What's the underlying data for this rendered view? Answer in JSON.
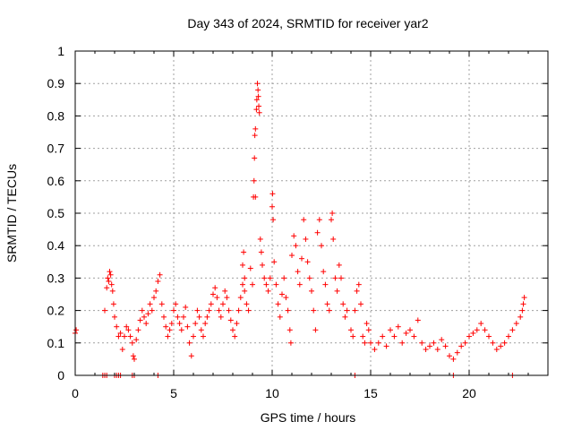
{
  "chart_data": {
    "type": "scatter",
    "title": "Day 343 of 2024, SRMTID for receiver yar2",
    "xlabel": "GPS time / hours",
    "ylabel": "SRMTID / TECUs",
    "xlim": [
      0,
      24
    ],
    "ylim": [
      0,
      1
    ],
    "x_ticks": [
      0,
      5,
      10,
      15,
      20
    ],
    "x_tick_labels": [
      "0",
      "5",
      "10",
      "15",
      "20"
    ],
    "y_ticks": [
      0,
      0.1,
      0.2,
      0.3,
      0.4,
      0.5,
      0.6,
      0.7,
      0.8,
      0.9,
      1
    ],
    "y_tick_labels": [
      "0",
      "0.1",
      "0.2",
      "0.3",
      "0.4",
      "0.5",
      "0.6",
      "0.7",
      "0.8",
      "0.9",
      "1"
    ],
    "grid": true,
    "marker": "+",
    "series": [
      {
        "name": "yar2",
        "color": "#ff0000",
        "points": [
          [
            0.0,
            0.13
          ],
          [
            0.05,
            0.14
          ],
          [
            1.4,
            0.0
          ],
          [
            1.5,
            0.0
          ],
          [
            1.6,
            0.0
          ],
          [
            2.0,
            0.0
          ],
          [
            2.1,
            0.0
          ],
          [
            2.2,
            0.0
          ],
          [
            2.3,
            0.0
          ],
          [
            2.9,
            0.0
          ],
          [
            3.0,
            0.0
          ],
          [
            4.2,
            0.0
          ],
          [
            14.2,
            0.0
          ],
          [
            19.2,
            0.0
          ],
          [
            22.2,
            0.0
          ],
          [
            1.5,
            0.2
          ],
          [
            1.6,
            0.27
          ],
          [
            1.65,
            0.3
          ],
          [
            1.7,
            0.29
          ],
          [
            1.75,
            0.32
          ],
          [
            1.8,
            0.31
          ],
          [
            1.85,
            0.28
          ],
          [
            1.9,
            0.26
          ],
          [
            1.95,
            0.22
          ],
          [
            2.0,
            0.18
          ],
          [
            2.1,
            0.15
          ],
          [
            2.2,
            0.12
          ],
          [
            2.3,
            0.13
          ],
          [
            2.4,
            0.08
          ],
          [
            2.5,
            0.12
          ],
          [
            2.6,
            0.15
          ],
          [
            2.7,
            0.14
          ],
          [
            2.8,
            0.12
          ],
          [
            2.9,
            0.1
          ],
          [
            2.95,
            0.06
          ],
          [
            3.0,
            0.05
          ],
          [
            3.1,
            0.11
          ],
          [
            3.2,
            0.14
          ],
          [
            3.3,
            0.17
          ],
          [
            3.4,
            0.2
          ],
          [
            3.5,
            0.18
          ],
          [
            3.6,
            0.16
          ],
          [
            3.7,
            0.19
          ],
          [
            3.8,
            0.22
          ],
          [
            3.9,
            0.2
          ],
          [
            4.0,
            0.24
          ],
          [
            4.1,
            0.26
          ],
          [
            4.2,
            0.29
          ],
          [
            4.3,
            0.31
          ],
          [
            4.4,
            0.22
          ],
          [
            4.5,
            0.18
          ],
          [
            4.6,
            0.15
          ],
          [
            4.7,
            0.12
          ],
          [
            4.8,
            0.14
          ],
          [
            4.9,
            0.16
          ],
          [
            5.0,
            0.2
          ],
          [
            5.1,
            0.22
          ],
          [
            5.2,
            0.18
          ],
          [
            5.3,
            0.16
          ],
          [
            5.4,
            0.14
          ],
          [
            5.5,
            0.18
          ],
          [
            5.6,
            0.21
          ],
          [
            5.7,
            0.15
          ],
          [
            5.8,
            0.1
          ],
          [
            5.9,
            0.06
          ],
          [
            6.0,
            0.12
          ],
          [
            6.1,
            0.16
          ],
          [
            6.2,
            0.2
          ],
          [
            6.3,
            0.18
          ],
          [
            6.4,
            0.14
          ],
          [
            6.5,
            0.12
          ],
          [
            6.6,
            0.16
          ],
          [
            6.7,
            0.18
          ],
          [
            6.8,
            0.2
          ],
          [
            6.9,
            0.22
          ],
          [
            7.0,
            0.25
          ],
          [
            7.1,
            0.27
          ],
          [
            7.2,
            0.24
          ],
          [
            7.3,
            0.2
          ],
          [
            7.4,
            0.18
          ],
          [
            7.5,
            0.22
          ],
          [
            7.6,
            0.26
          ],
          [
            7.7,
            0.24
          ],
          [
            7.8,
            0.2
          ],
          [
            7.9,
            0.17
          ],
          [
            8.0,
            0.14
          ],
          [
            8.1,
            0.12
          ],
          [
            8.2,
            0.16
          ],
          [
            8.3,
            0.2
          ],
          [
            8.4,
            0.24
          ],
          [
            8.5,
            0.28
          ],
          [
            8.6,
            0.26
          ],
          [
            8.7,
            0.22
          ],
          [
            8.8,
            0.2
          ],
          [
            8.5,
            0.34
          ],
          [
            8.55,
            0.38
          ],
          [
            8.6,
            0.3
          ],
          [
            8.9,
            0.33
          ],
          [
            9.0,
            0.28
          ],
          [
            9.05,
            0.55
          ],
          [
            9.08,
            0.6
          ],
          [
            9.1,
            0.67
          ],
          [
            9.12,
            0.74
          ],
          [
            9.15,
            0.76
          ],
          [
            9.2,
            0.82
          ],
          [
            9.22,
            0.85
          ],
          [
            9.25,
            0.9
          ],
          [
            9.28,
            0.88
          ],
          [
            9.3,
            0.86
          ],
          [
            9.32,
            0.83
          ],
          [
            9.35,
            0.81
          ],
          [
            9.15,
            0.55
          ],
          [
            9.4,
            0.42
          ],
          [
            9.45,
            0.38
          ],
          [
            9.5,
            0.34
          ],
          [
            9.6,
            0.3
          ],
          [
            9.7,
            0.28
          ],
          [
            9.8,
            0.26
          ],
          [
            9.9,
            0.3
          ],
          [
            10.0,
            0.52
          ],
          [
            10.02,
            0.56
          ],
          [
            10.05,
            0.48
          ],
          [
            10.1,
            0.35
          ],
          [
            10.2,
            0.28
          ],
          [
            10.3,
            0.22
          ],
          [
            10.4,
            0.18
          ],
          [
            10.5,
            0.25
          ],
          [
            10.6,
            0.3
          ],
          [
            10.7,
            0.24
          ],
          [
            10.8,
            0.2
          ],
          [
            10.9,
            0.14
          ],
          [
            10.95,
            0.1
          ],
          [
            11.0,
            0.37
          ],
          [
            11.1,
            0.43
          ],
          [
            11.2,
            0.4
          ],
          [
            11.3,
            0.32
          ],
          [
            11.4,
            0.28
          ],
          [
            11.5,
            0.36
          ],
          [
            11.6,
            0.48
          ],
          [
            11.7,
            0.42
          ],
          [
            11.8,
            0.35
          ],
          [
            11.9,
            0.3
          ],
          [
            12.0,
            0.26
          ],
          [
            12.1,
            0.2
          ],
          [
            12.2,
            0.14
          ],
          [
            12.3,
            0.44
          ],
          [
            12.4,
            0.48
          ],
          [
            12.5,
            0.4
          ],
          [
            12.6,
            0.32
          ],
          [
            12.7,
            0.28
          ],
          [
            12.8,
            0.22
          ],
          [
            12.9,
            0.2
          ],
          [
            13.0,
            0.48
          ],
          [
            13.05,
            0.5
          ],
          [
            13.1,
            0.42
          ],
          [
            13.2,
            0.3
          ],
          [
            13.3,
            0.26
          ],
          [
            13.4,
            0.34
          ],
          [
            13.5,
            0.3
          ],
          [
            13.6,
            0.22
          ],
          [
            13.7,
            0.18
          ],
          [
            13.8,
            0.2
          ],
          [
            14.0,
            0.14
          ],
          [
            14.1,
            0.12
          ],
          [
            14.2,
            0.2
          ],
          [
            14.3,
            0.26
          ],
          [
            14.4,
            0.28
          ],
          [
            14.5,
            0.22
          ],
          [
            14.6,
            0.12
          ],
          [
            14.7,
            0.1
          ],
          [
            14.8,
            0.16
          ],
          [
            14.9,
            0.14
          ],
          [
            15.0,
            0.1
          ],
          [
            15.2,
            0.08
          ],
          [
            15.4,
            0.1
          ],
          [
            15.6,
            0.12
          ],
          [
            15.8,
            0.09
          ],
          [
            16.0,
            0.14
          ],
          [
            16.2,
            0.12
          ],
          [
            16.4,
            0.15
          ],
          [
            16.6,
            0.1
          ],
          [
            16.8,
            0.13
          ],
          [
            17.0,
            0.14
          ],
          [
            17.2,
            0.12
          ],
          [
            17.4,
            0.17
          ],
          [
            17.6,
            0.1
          ],
          [
            17.8,
            0.08
          ],
          [
            18.0,
            0.09
          ],
          [
            18.2,
            0.1
          ],
          [
            18.4,
            0.08
          ],
          [
            18.6,
            0.11
          ],
          [
            18.8,
            0.09
          ],
          [
            19.0,
            0.06
          ],
          [
            19.2,
            0.05
          ],
          [
            19.4,
            0.07
          ],
          [
            19.6,
            0.09
          ],
          [
            19.8,
            0.1
          ],
          [
            20.0,
            0.12
          ],
          [
            20.2,
            0.13
          ],
          [
            20.4,
            0.14
          ],
          [
            20.6,
            0.16
          ],
          [
            20.8,
            0.14
          ],
          [
            21.0,
            0.12
          ],
          [
            21.2,
            0.1
          ],
          [
            21.4,
            0.08
          ],
          [
            21.6,
            0.09
          ],
          [
            21.8,
            0.1
          ],
          [
            22.0,
            0.12
          ],
          [
            22.2,
            0.14
          ],
          [
            22.4,
            0.16
          ],
          [
            22.6,
            0.18
          ],
          [
            22.7,
            0.2
          ],
          [
            22.75,
            0.22
          ],
          [
            22.8,
            0.24
          ]
        ]
      }
    ]
  }
}
